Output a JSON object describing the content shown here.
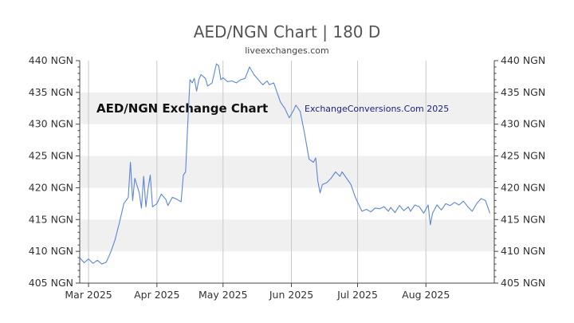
{
  "header": {
    "title": "AED/NGN Chart | 180 D",
    "subtitle": "liveexchanges.com"
  },
  "watermark": {
    "left": "AED/NGN Exchange Chart",
    "right": "ExchangeConversions.Com 2025"
  },
  "colors": {
    "line": "#5b86d6",
    "band": "#f0f0f0",
    "grid": "#c9c9c9",
    "axis": "#444444"
  },
  "chart_data": {
    "type": "line",
    "title": "AED/NGN Chart | 180 D",
    "subtitle": "liveexchanges.com",
    "ylim": [
      405,
      440
    ],
    "y_ticks": [
      440,
      435,
      430,
      425,
      420,
      415,
      410,
      405
    ],
    "y_tick_labels": [
      "440 NGN",
      "435 NGN",
      "430 NGN",
      "425 NGN",
      "420 NGN",
      "415 NGN",
      "410 NGN",
      "405 NGN"
    ],
    "x_tick_labels": [
      "Mar 2025",
      "Apr 2025",
      "May 2025",
      "Jun 2025",
      "Jul 2025",
      "Aug 2025"
    ],
    "x_tick_dates": [
      "2025-03-01",
      "2025-04-01",
      "2025-05-01",
      "2025-06-01",
      "2025-07-01",
      "2025-08-01"
    ],
    "xlim": [
      "2025-02-25",
      "2025-09-01"
    ],
    "grid": true,
    "series": [
      {
        "values": [
          [
            "2025-02-25",
            409.0
          ],
          [
            "2025-02-27",
            408.2
          ],
          [
            "2025-03-01",
            408.8
          ],
          [
            "2025-03-03",
            408.1
          ],
          [
            "2025-03-05",
            408.6
          ],
          [
            "2025-03-07",
            408.0
          ],
          [
            "2025-03-09",
            408.3
          ],
          [
            "2025-03-11",
            409.8
          ],
          [
            "2025-03-13",
            411.8
          ],
          [
            "2025-03-15",
            414.5
          ],
          [
            "2025-03-17",
            417.5
          ],
          [
            "2025-03-19",
            418.5
          ],
          [
            "2025-03-20",
            424.0
          ],
          [
            "2025-03-21",
            418.0
          ],
          [
            "2025-03-22",
            421.5
          ],
          [
            "2025-03-24",
            419.2
          ],
          [
            "2025-03-25",
            416.8
          ],
          [
            "2025-03-26",
            421.8
          ],
          [
            "2025-03-27",
            417.0
          ],
          [
            "2025-03-28",
            419.8
          ],
          [
            "2025-03-29",
            422.0
          ],
          [
            "2025-03-30",
            417.0
          ],
          [
            "2025-04-01",
            417.5
          ],
          [
            "2025-04-03",
            419.0
          ],
          [
            "2025-04-05",
            418.2
          ],
          [
            "2025-04-06",
            417.2
          ],
          [
            "2025-04-08",
            418.5
          ],
          [
            "2025-04-10",
            418.2
          ],
          [
            "2025-04-12",
            417.8
          ],
          [
            "2025-04-13",
            422.0
          ],
          [
            "2025-04-14",
            422.5
          ],
          [
            "2025-04-15",
            430.0
          ],
          [
            "2025-04-16",
            437.0
          ],
          [
            "2025-04-17",
            436.5
          ],
          [
            "2025-04-18",
            437.2
          ],
          [
            "2025-04-19",
            435.2
          ],
          [
            "2025-04-20",
            437.0
          ],
          [
            "2025-04-21",
            437.8
          ],
          [
            "2025-04-23",
            437.2
          ],
          [
            "2025-04-24",
            436.0
          ],
          [
            "2025-04-26",
            436.5
          ],
          [
            "2025-04-28",
            439.5
          ],
          [
            "2025-04-29",
            439.2
          ],
          [
            "2025-04-30",
            437.0
          ],
          [
            "2025-05-01",
            437.3
          ],
          [
            "2025-05-03",
            436.7
          ],
          [
            "2025-05-05",
            436.8
          ],
          [
            "2025-05-07",
            436.5
          ],
          [
            "2025-05-09",
            437.0
          ],
          [
            "2025-05-11",
            437.2
          ],
          [
            "2025-05-13",
            439.0
          ],
          [
            "2025-05-15",
            437.8
          ],
          [
            "2025-05-17",
            437.0
          ],
          [
            "2025-05-19",
            436.2
          ],
          [
            "2025-05-21",
            436.8
          ],
          [
            "2025-05-22",
            436.2
          ],
          [
            "2025-05-24",
            436.5
          ],
          [
            "2025-05-25",
            435.5
          ],
          [
            "2025-05-27",
            433.5
          ],
          [
            "2025-05-29",
            432.5
          ],
          [
            "2025-05-31",
            431.0
          ],
          [
            "2025-06-02",
            432.2
          ],
          [
            "2025-06-03",
            433.0
          ],
          [
            "2025-06-05",
            432.0
          ],
          [
            "2025-06-07",
            428.5
          ],
          [
            "2025-06-09",
            424.5
          ],
          [
            "2025-06-11",
            424.0
          ],
          [
            "2025-06-12",
            424.7
          ],
          [
            "2025-06-13",
            421.0
          ],
          [
            "2025-06-14",
            419.2
          ],
          [
            "2025-06-15",
            420.5
          ],
          [
            "2025-06-17",
            420.8
          ],
          [
            "2025-06-19",
            421.5
          ],
          [
            "2025-06-21",
            422.5
          ],
          [
            "2025-06-23",
            421.8
          ],
          [
            "2025-06-24",
            422.5
          ],
          [
            "2025-06-26",
            421.5
          ],
          [
            "2025-06-28",
            420.5
          ],
          [
            "2025-06-30",
            418.5
          ],
          [
            "2025-07-02",
            417.0
          ],
          [
            "2025-07-03",
            416.3
          ],
          [
            "2025-07-05",
            416.6
          ],
          [
            "2025-07-07",
            416.2
          ],
          [
            "2025-07-09",
            416.8
          ],
          [
            "2025-07-11",
            416.7
          ],
          [
            "2025-07-13",
            417.0
          ],
          [
            "2025-07-15",
            416.3
          ],
          [
            "2025-07-16",
            416.9
          ],
          [
            "2025-07-18",
            416.1
          ],
          [
            "2025-07-20",
            417.2
          ],
          [
            "2025-07-22",
            416.4
          ],
          [
            "2025-07-24",
            417.0
          ],
          [
            "2025-07-25",
            416.3
          ],
          [
            "2025-07-27",
            417.3
          ],
          [
            "2025-07-29",
            417.0
          ],
          [
            "2025-07-31",
            416.0
          ],
          [
            "2025-08-02",
            417.3
          ],
          [
            "2025-08-03",
            414.2
          ],
          [
            "2025-08-04",
            416.0
          ],
          [
            "2025-08-06",
            417.3
          ],
          [
            "2025-08-08",
            416.5
          ],
          [
            "2025-08-10",
            417.5
          ],
          [
            "2025-08-12",
            417.2
          ],
          [
            "2025-08-14",
            417.7
          ],
          [
            "2025-08-16",
            417.3
          ],
          [
            "2025-08-18",
            417.9
          ],
          [
            "2025-08-20",
            417.0
          ],
          [
            "2025-08-22",
            416.3
          ],
          [
            "2025-08-24",
            417.5
          ],
          [
            "2025-08-26",
            418.3
          ],
          [
            "2025-08-28",
            418.0
          ],
          [
            "2025-08-30",
            416.0
          ]
        ]
      }
    ]
  }
}
